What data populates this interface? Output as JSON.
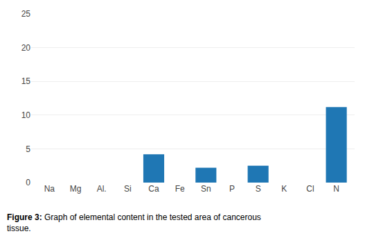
{
  "chart_data": {
    "type": "bar",
    "title": "Figure 3:",
    "subtitle": "Graph of elemental content in the tested area of cancerous\ntissue.",
    "categories": [
      "Na",
      "Mg",
      "Al.",
      "Si",
      "Ca",
      "Fe",
      "Sn",
      "P",
      "S",
      "K",
      "Cl",
      "N"
    ],
    "values": [
      0.0,
      0.0,
      0.0,
      0.0,
      4.2,
      0.0,
      2.2,
      0.0,
      2.5,
      0.0,
      0.0,
      11.2
    ],
    "ylim": [
      0,
      25
    ],
    "yticks": [
      0,
      5,
      10,
      15,
      20,
      25
    ],
    "grid": true
  }
}
